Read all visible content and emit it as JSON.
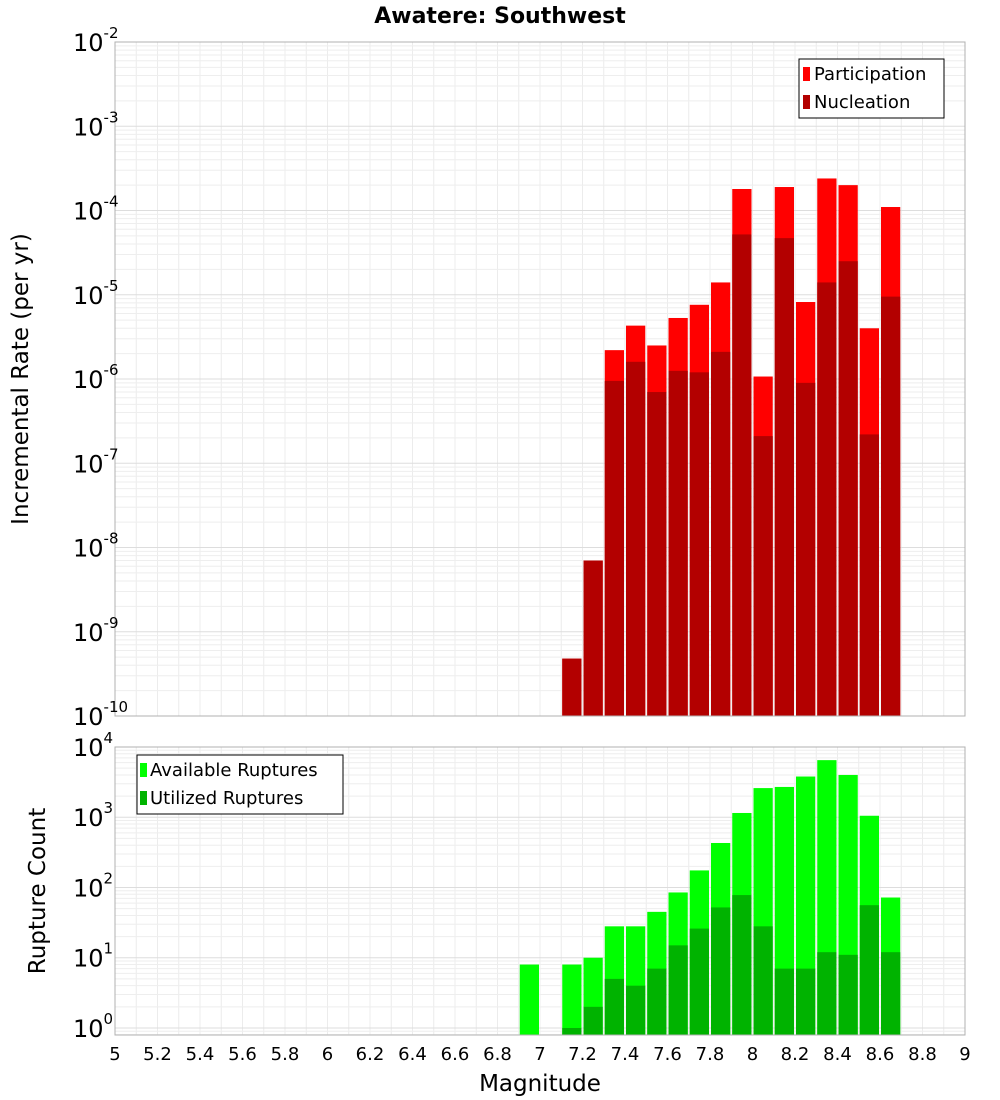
{
  "chart_data": [
    {
      "type": "bar",
      "title": "Awatere: Southwest",
      "xlabel": "",
      "ylabel": "Incremental Rate (per yr)",
      "yscale": "log",
      "ylim_exponents": [
        -10,
        -2
      ],
      "xlim": [
        5,
        9
      ],
      "bin_width": 0.1,
      "legend_position": "top-right",
      "series": [
        {
          "name": "Participation",
          "color": "#ff0000",
          "x": [
            7.15,
            7.25,
            7.35,
            7.45,
            7.55,
            7.65,
            7.75,
            7.85,
            7.95,
            8.05,
            8.15,
            8.25,
            8.35,
            8.45,
            8.55,
            8.65
          ],
          "values": [
            4.8e-10,
            7e-09,
            2.2e-06,
            4.3e-06,
            2.5e-06,
            5.3e-06,
            7.6e-06,
            1.4e-05,
            0.00018,
            1.07e-06,
            0.00019,
            8.2e-06,
            0.00024,
            0.0002,
            4e-06,
            0.00011
          ]
        },
        {
          "name": "Nucleation",
          "color": "#b30000",
          "x": [
            7.15,
            7.25,
            7.35,
            7.45,
            7.55,
            7.65,
            7.75,
            7.85,
            7.95,
            8.05,
            8.15,
            8.25,
            8.35,
            8.45,
            8.55,
            8.65
          ],
          "values": [
            4.8e-10,
            7e-09,
            9.5e-07,
            1.6e-06,
            7e-07,
            1.25e-06,
            1.2e-06,
            2.1e-06,
            5.2e-05,
            2.1e-07,
            4.7e-05,
            9e-07,
            1.4e-05,
            2.5e-05,
            2.2e-07,
            9.5e-06
          ]
        }
      ]
    },
    {
      "type": "bar",
      "title": "",
      "xlabel": "Magnitude",
      "ylabel": "Rupture Count",
      "yscale": "log",
      "ylim_exponents": [
        -0.1,
        4
      ],
      "xlim": [
        5,
        9
      ],
      "bin_width": 0.1,
      "legend_position": "top-left",
      "xticks": [
        "5",
        "5.2",
        "5.4",
        "5.6",
        "5.8",
        "6",
        "6.2",
        "6.4",
        "6.6",
        "6.8",
        "7",
        "7.2",
        "7.4",
        "7.6",
        "7.8",
        "8",
        "8.2",
        "8.4",
        "8.6",
        "8.8",
        "9"
      ],
      "series": [
        {
          "name": "Available Ruptures",
          "color": "#00ff00",
          "x": [
            6.95,
            7.15,
            7.25,
            7.35,
            7.45,
            7.55,
            7.65,
            7.75,
            7.85,
            7.95,
            8.05,
            8.15,
            8.25,
            8.35,
            8.45,
            8.55,
            8.65
          ],
          "values": [
            8,
            8,
            10,
            28,
            28,
            45,
            85,
            175,
            430,
            1150,
            2600,
            2700,
            3800,
            6500,
            4000,
            1050,
            72
          ]
        },
        {
          "name": "Utilized Ruptures",
          "color": "#00b300",
          "x": [
            7.15,
            7.25,
            7.35,
            7.45,
            7.55,
            7.65,
            7.75,
            7.85,
            7.95,
            8.05,
            8.15,
            8.25,
            8.35,
            8.45,
            8.55,
            8.65
          ],
          "values": [
            1,
            2,
            5,
            4,
            7,
            15,
            26,
            52,
            78,
            28,
            7,
            7,
            12,
            11,
            56,
            12
          ]
        }
      ]
    }
  ]
}
